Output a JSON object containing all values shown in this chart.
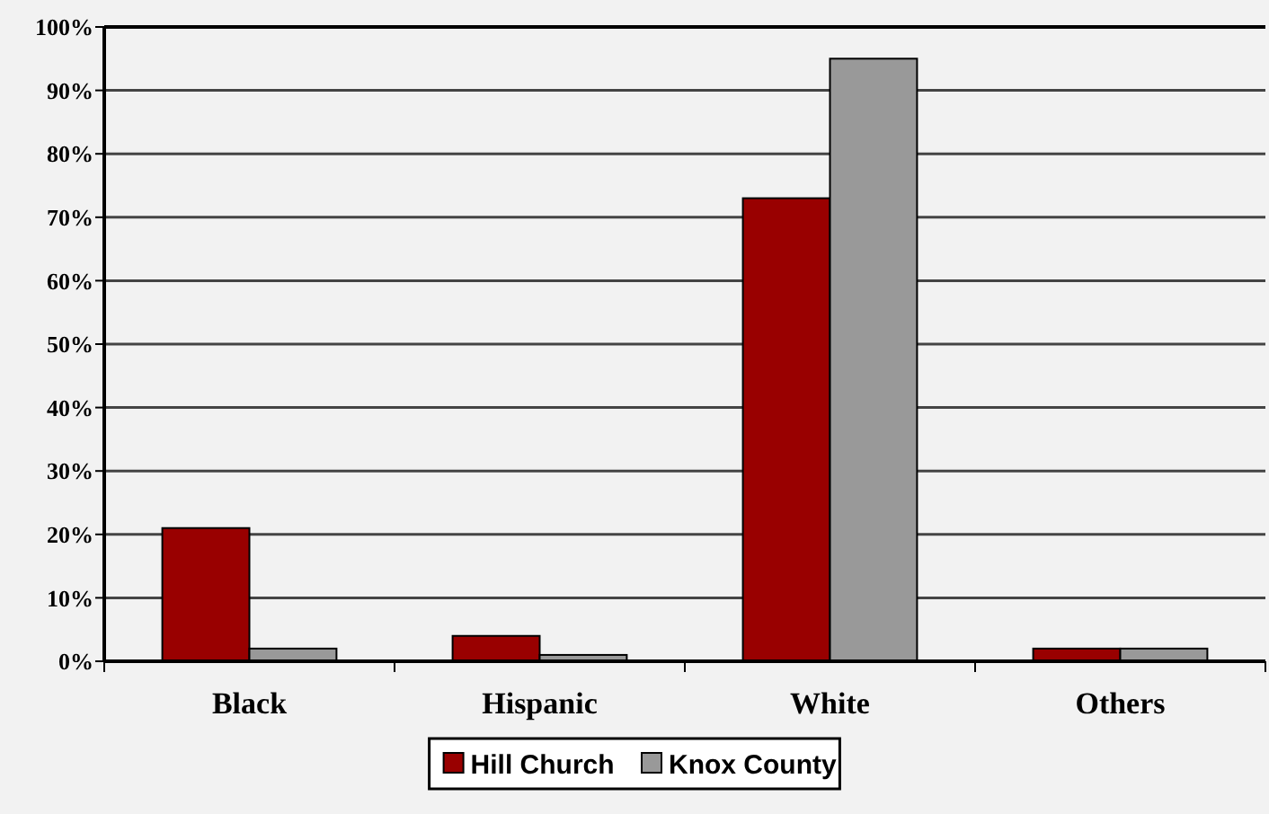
{
  "chart_data": {
    "type": "bar",
    "categories": [
      "Black",
      "Hispanic",
      "White",
      "Others"
    ],
    "series": [
      {
        "name": "Hill Church",
        "color": "#990000",
        "values": [
          21,
          4,
          73,
          2
        ]
      },
      {
        "name": "Knox County",
        "color": "#999999",
        "values": [
          2,
          1,
          95,
          2
        ]
      }
    ],
    "ylim": [
      0,
      100
    ],
    "yticks": [
      {
        "value": 0,
        "label": "0%"
      },
      {
        "value": 10,
        "label": "10%"
      },
      {
        "value": 20,
        "label": "20%"
      },
      {
        "value": 30,
        "label": "30%"
      },
      {
        "value": 40,
        "label": "40%"
      },
      {
        "value": 50,
        "label": "50%"
      },
      {
        "value": 60,
        "label": "60%"
      },
      {
        "value": 70,
        "label": "70%"
      },
      {
        "value": 80,
        "label": "80%"
      },
      {
        "value": 90,
        "label": "90%"
      },
      {
        "value": 100,
        "label": "100%"
      }
    ],
    "grid": "y",
    "legend": "bottom"
  }
}
